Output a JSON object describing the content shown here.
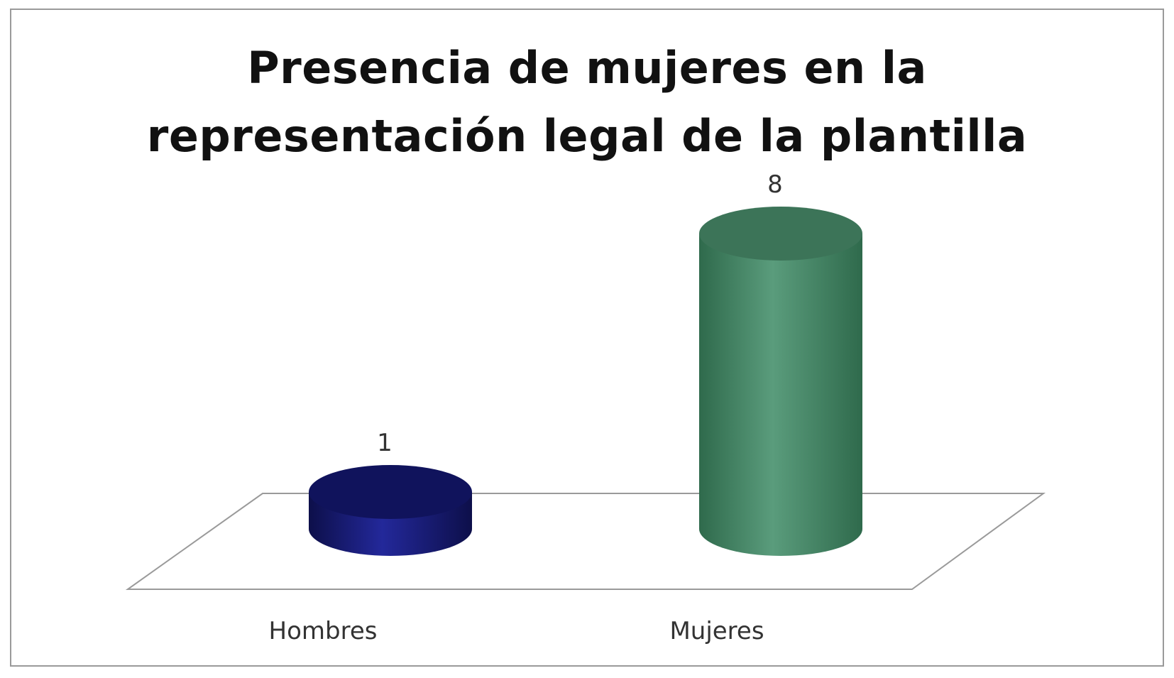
{
  "chart_data": {
    "type": "bar",
    "style": "3d-cylinder",
    "title": "Presencia de mujeres en la representación legal de la plantilla",
    "title_lines": [
      "Presencia de mujeres en la",
      "representación legal de la plantilla"
    ],
    "categories": [
      "Hombres",
      "Mujeres"
    ],
    "values": [
      1,
      8
    ],
    "data_labels": [
      "1",
      "8"
    ],
    "colors": [
      "#1a1f7a",
      "#4a8a6a"
    ],
    "xlabel": "",
    "ylabel": "",
    "ylim": [
      0,
      8
    ],
    "grid": false,
    "legend": "none"
  }
}
